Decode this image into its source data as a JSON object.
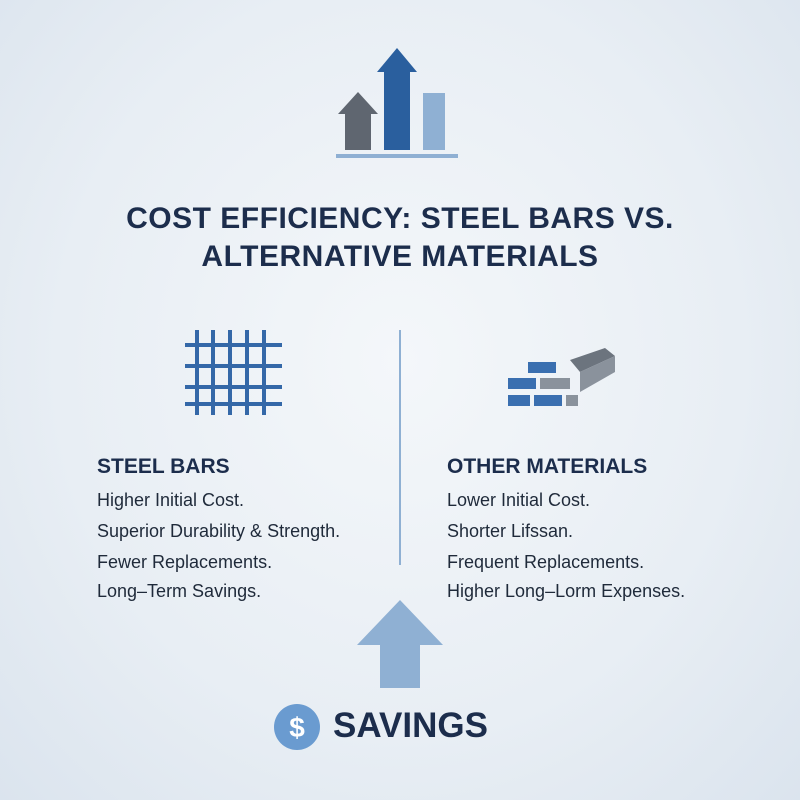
{
  "header": {
    "title_lines": [
      "COST EFFICIENCY: STEEL BARS VS.",
      "ALTERNATIVE MATERIALS"
    ]
  },
  "columns": [
    {
      "heading": "STEEL BARS",
      "items": [
        "Higher Initial Cost.",
        "Superior Durability & Strength.",
        "Fewer Replacements.",
        "Long–Term Savings."
      ]
    },
    {
      "heading": "OTHER MATERIALS",
      "items": [
        "Lower Initial Cost.",
        "Shorter Lifssan.",
        "Frequent Replacements.",
        "Higher Long–Lorm Expenses."
      ]
    }
  ],
  "footer": {
    "icon": "$",
    "label": "SAVINGS"
  }
}
